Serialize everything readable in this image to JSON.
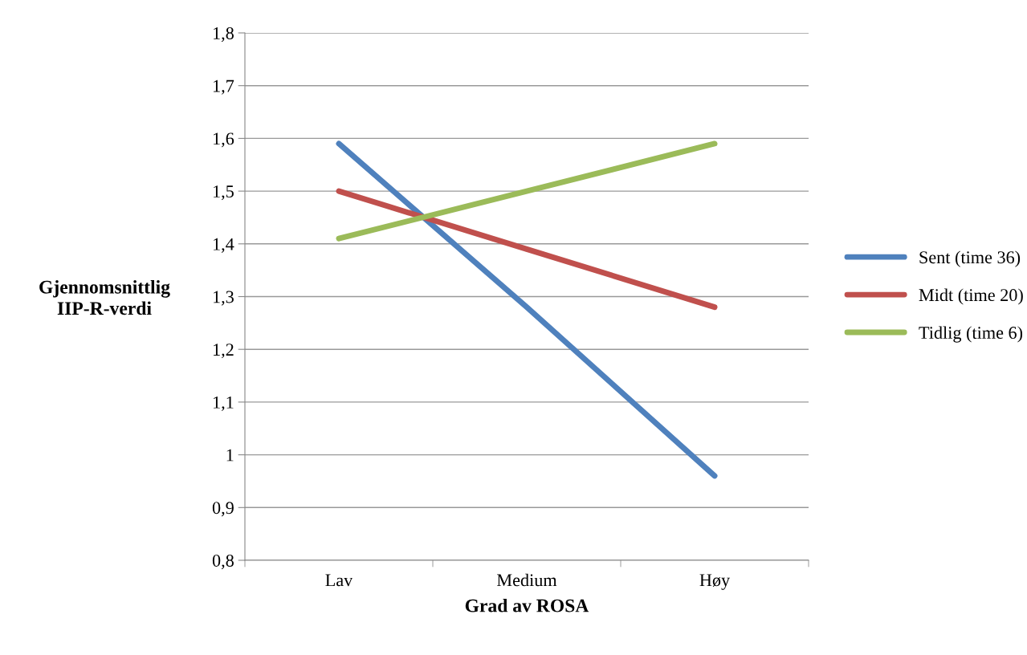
{
  "chart_data": {
    "type": "line",
    "xlabel": "Grad av ROSA",
    "ylabel": "Gjennomsnittlig\nIIP-R-verdi",
    "categories": [
      "Lav",
      "Medium",
      "Høy"
    ],
    "series": [
      {
        "name": "Sent (time 36)",
        "color": "#4f81bd",
        "values": [
          1.59,
          1.28,
          0.96
        ]
      },
      {
        "name": "Midt (time 20)",
        "color": "#c0504d",
        "values": [
          1.5,
          1.39,
          1.28
        ]
      },
      {
        "name": "Tidlig (time 6)",
        "color": "#9bbb59",
        "values": [
          1.41,
          1.5,
          1.59
        ]
      }
    ],
    "ylim": [
      0.8,
      1.8
    ],
    "yticks": [
      {
        "value": 0.8,
        "label": "0,8"
      },
      {
        "value": 0.9,
        "label": "0,9"
      },
      1,
      {
        "value": 1.1,
        "label": "1,1"
      },
      {
        "value": 1.2,
        "label": "1,2"
      },
      {
        "value": 1.3,
        "label": "1,3"
      },
      {
        "value": 1.4,
        "label": "1,4"
      },
      {
        "value": 1.5,
        "label": "1,5"
      },
      {
        "value": 1.6,
        "label": "1,6"
      },
      {
        "value": 1.7,
        "label": "1,7"
      },
      {
        "value": 1.8,
        "label": "1,8"
      }
    ],
    "grid": "y",
    "legend": "right",
    "marker": "none",
    "line_style": "solid"
  }
}
